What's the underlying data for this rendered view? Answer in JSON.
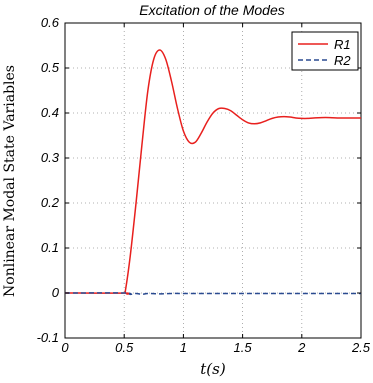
{
  "chart_data": {
    "type": "line",
    "title": "Excitation of the Modes",
    "xlabel": "t(s)",
    "ylabel": "Nonlinear Modal State Variables",
    "xlim": [
      0,
      2.5
    ],
    "ylim": [
      -0.1,
      0.6
    ],
    "x_ticks": [
      0,
      0.5,
      1,
      1.5,
      2,
      2.5
    ],
    "x_tick_labels": [
      "0",
      "0.5",
      "1",
      "1.5",
      "2",
      "2.5"
    ],
    "y_ticks": [
      -0.1,
      0,
      0.1,
      0.2,
      0.3,
      0.4,
      0.5,
      0.6
    ],
    "y_tick_labels": [
      "-0.1",
      "0",
      "0.1",
      "0.2",
      "0.3",
      "0.4",
      "0.5",
      "0.6"
    ],
    "grid": true,
    "legend_position": "top-right",
    "series": [
      {
        "name": "R1",
        "color": "#e8201e",
        "line_style": "solid",
        "x": [
          0,
          0.5,
          0.51,
          0.55,
          0.6,
          0.65,
          0.7,
          0.75,
          0.8,
          0.85,
          0.9,
          0.95,
          1.0,
          1.05,
          1.1,
          1.15,
          1.2,
          1.25,
          1.3,
          1.35,
          1.4,
          1.45,
          1.5,
          1.55,
          1.6,
          1.65,
          1.7,
          1.75,
          1.8,
          1.85,
          1.9,
          1.95,
          2.0,
          2.05,
          2.1,
          2.2,
          2.3,
          2.4,
          2.5
        ],
        "y": [
          0,
          0,
          0.005,
          0.08,
          0.2,
          0.33,
          0.45,
          0.52,
          0.54,
          0.52,
          0.47,
          0.41,
          0.36,
          0.335,
          0.335,
          0.355,
          0.38,
          0.4,
          0.41,
          0.41,
          0.405,
          0.395,
          0.385,
          0.378,
          0.376,
          0.378,
          0.383,
          0.388,
          0.391,
          0.392,
          0.391,
          0.389,
          0.388,
          0.388,
          0.389,
          0.39,
          0.389,
          0.389,
          0.389
        ]
      },
      {
        "name": "R2",
        "color": "#2a4a90",
        "line_style": "dashed",
        "x": [
          0,
          0.5,
          0.55,
          0.6,
          0.65,
          0.7,
          0.8,
          0.9,
          1.0,
          1.5,
          2.0,
          2.5
        ],
        "y": [
          0,
          0,
          -0.003,
          -0.001,
          -0.003,
          -0.001,
          -0.002,
          -0.001,
          -0.001,
          -0.001,
          -0.001,
          -0.001
        ]
      }
    ]
  }
}
